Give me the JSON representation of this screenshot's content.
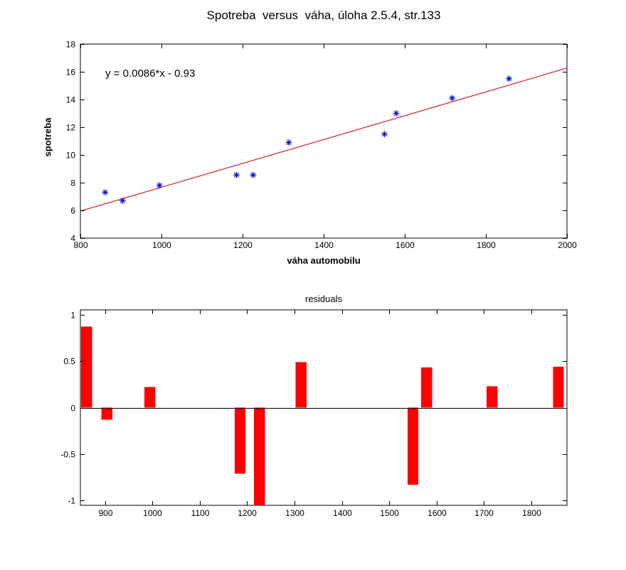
{
  "colors": {
    "marker": "#0000cc",
    "fit_line": "#cc2229",
    "bar": "#ff0000",
    "axis": "#000000",
    "background": "#ffffff"
  },
  "chart_data": [
    {
      "type": "scatter",
      "title": "Spotreba  versus  váha, úloha 2.5.4, str.133",
      "annotation": "y = 0.0086*x - 0.93",
      "xlabel": "váha automobilu",
      "ylabel": "spotreba",
      "xlim": [
        800,
        2000
      ],
      "ylim": [
        4,
        18
      ],
      "xticks": [
        800,
        1000,
        1200,
        1400,
        1600,
        1800,
        2000
      ],
      "yticks": [
        4,
        6,
        8,
        10,
        12,
        14,
        16,
        18
      ],
      "points_x": [
        861,
        904,
        995,
        1185,
        1226,
        1314,
        1550,
        1579,
        1717,
        1857
      ],
      "points_y": [
        7.3,
        6.7,
        7.8,
        8.55,
        8.55,
        10.9,
        11.5,
        13.0,
        14.1,
        15.5
      ],
      "fit": {
        "slope": 0.0086,
        "intercept": -0.93
      },
      "marker": "asterisk",
      "grid": false,
      "legend": null
    },
    {
      "type": "bar",
      "title": "residuals",
      "xlabel": "",
      "ylabel": "",
      "xlim": [
        848,
        1875
      ],
      "ylim": [
        -1.05,
        1.05
      ],
      "xticks": [
        900,
        1000,
        1100,
        1200,
        1300,
        1400,
        1500,
        1600,
        1700,
        1800
      ],
      "yticks": [
        -1,
        -0.5,
        0,
        0.5,
        1
      ],
      "ytick_labels": [
        "-1",
        "-0.5",
        "0",
        "0.5",
        "1"
      ],
      "categories": [
        861,
        904,
        995,
        1185,
        1226,
        1314,
        1550,
        1579,
        1717,
        1857
      ],
      "values": [
        0.87,
        -0.13,
        0.22,
        -0.71,
        -1.05,
        0.49,
        -0.83,
        0.43,
        0.23,
        0.44
      ],
      "bar_width_units": 23,
      "baseline": 0,
      "grid": false
    }
  ]
}
